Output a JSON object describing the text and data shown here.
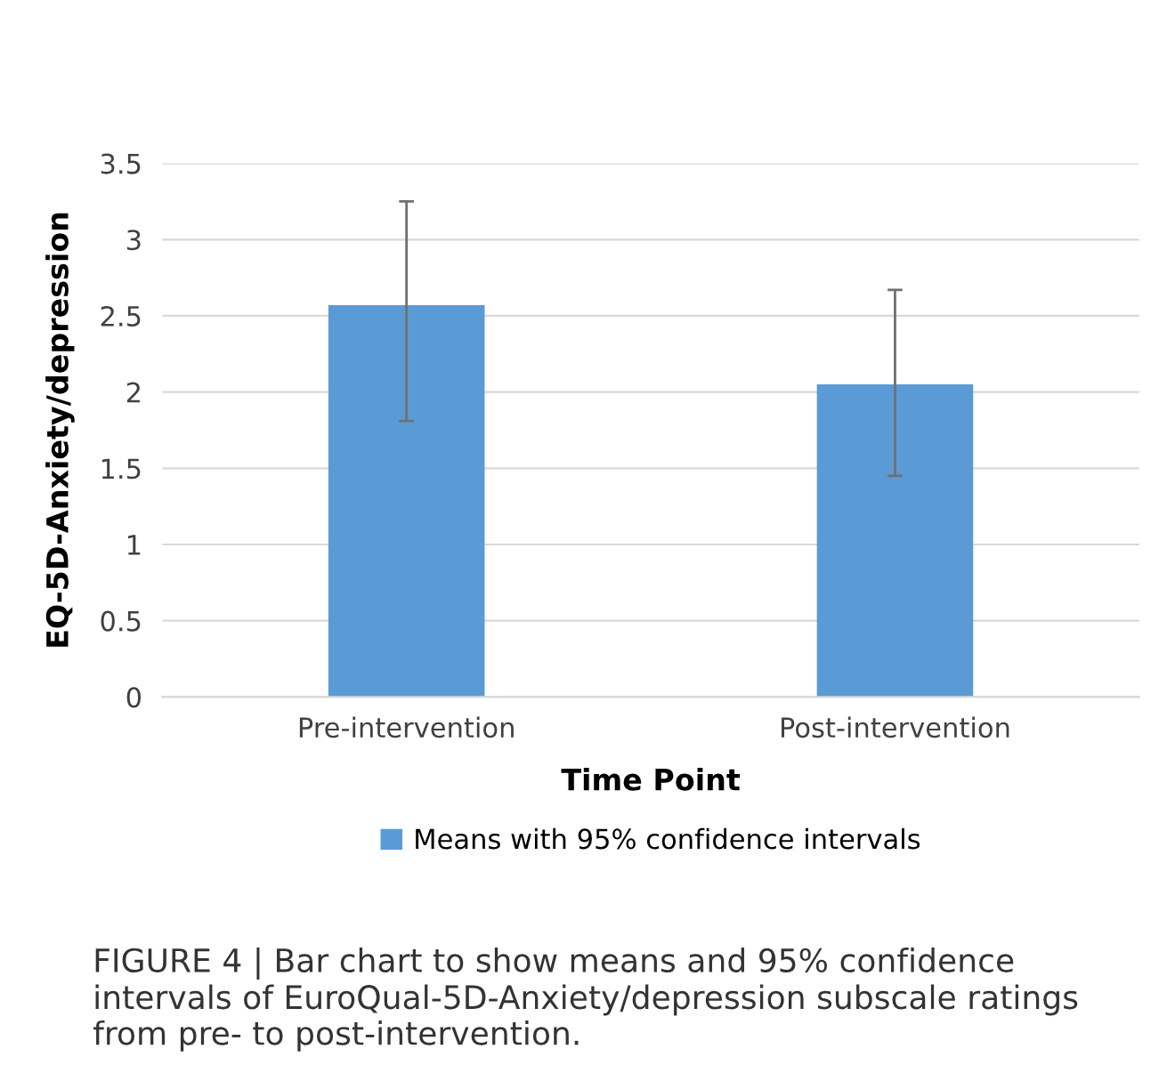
{
  "chart_data": {
    "type": "bar",
    "xlabel": "Time Point",
    "ylabel": "EQ-5D-Anxiety/depression",
    "categories": [
      "Pre-intervention",
      "Post-intervention"
    ],
    "series": [
      {
        "name": "Means with 95% confidence intervals",
        "color": "#5b9bd5",
        "values": [
          2.57,
          2.05
        ],
        "errors": [
          [
            1.81,
            3.25
          ],
          [
            1.45,
            2.67
          ]
        ]
      }
    ],
    "ylim": [
      0,
      3.5
    ],
    "yticks": [
      0,
      0.5,
      1,
      1.5,
      2,
      2.5,
      3,
      3.5
    ],
    "grid": "y",
    "legend": "bottom",
    "annotations": [
      "FIGURE 4 | Bar chart to show means and 95% confidence intervals of EuroQual-5D-Anxiety/depression subscale ratings from pre- to post-intervention."
    ]
  }
}
